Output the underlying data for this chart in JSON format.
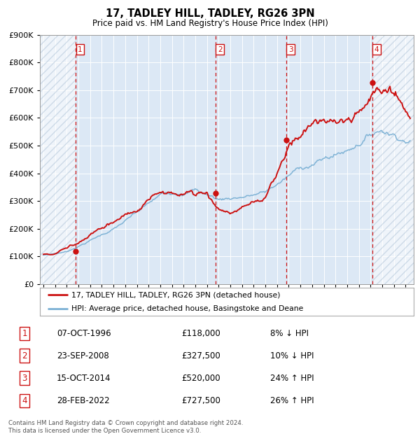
{
  "title": "17, TADLEY HILL, TADLEY, RG26 3PN",
  "subtitle": "Price paid vs. HM Land Registry's House Price Index (HPI)",
  "hpi_color": "#7ab0d4",
  "price_color": "#cc1111",
  "background_color": "#dce8f5",
  "hatch_color": "#c8d8e8",
  "sale_points": [
    {
      "date_num": 1996.77,
      "price": 118000,
      "label": "1"
    },
    {
      "date_num": 2008.73,
      "price": 327500,
      "label": "2"
    },
    {
      "date_num": 2014.79,
      "price": 520000,
      "label": "3"
    },
    {
      "date_num": 2022.16,
      "price": 727500,
      "label": "4"
    }
  ],
  "table_rows": [
    {
      "num": "1",
      "date": "07-OCT-1996",
      "price": "£118,000",
      "pct": "8% ↓ HPI"
    },
    {
      "num": "2",
      "date": "23-SEP-2008",
      "price": "£327,500",
      "pct": "10% ↓ HPI"
    },
    {
      "num": "3",
      "date": "15-OCT-2014",
      "price": "£520,000",
      "pct": "24% ↑ HPI"
    },
    {
      "num": "4",
      "date": "28-FEB-2022",
      "price": "£727,500",
      "pct": "26% ↑ HPI"
    }
  ],
  "footnote": "Contains HM Land Registry data © Crown copyright and database right 2024.\nThis data is licensed under the Open Government Licence v3.0.",
  "ylim": [
    0,
    900000
  ],
  "xlim_start": 1993.7,
  "xlim_end": 2025.7
}
